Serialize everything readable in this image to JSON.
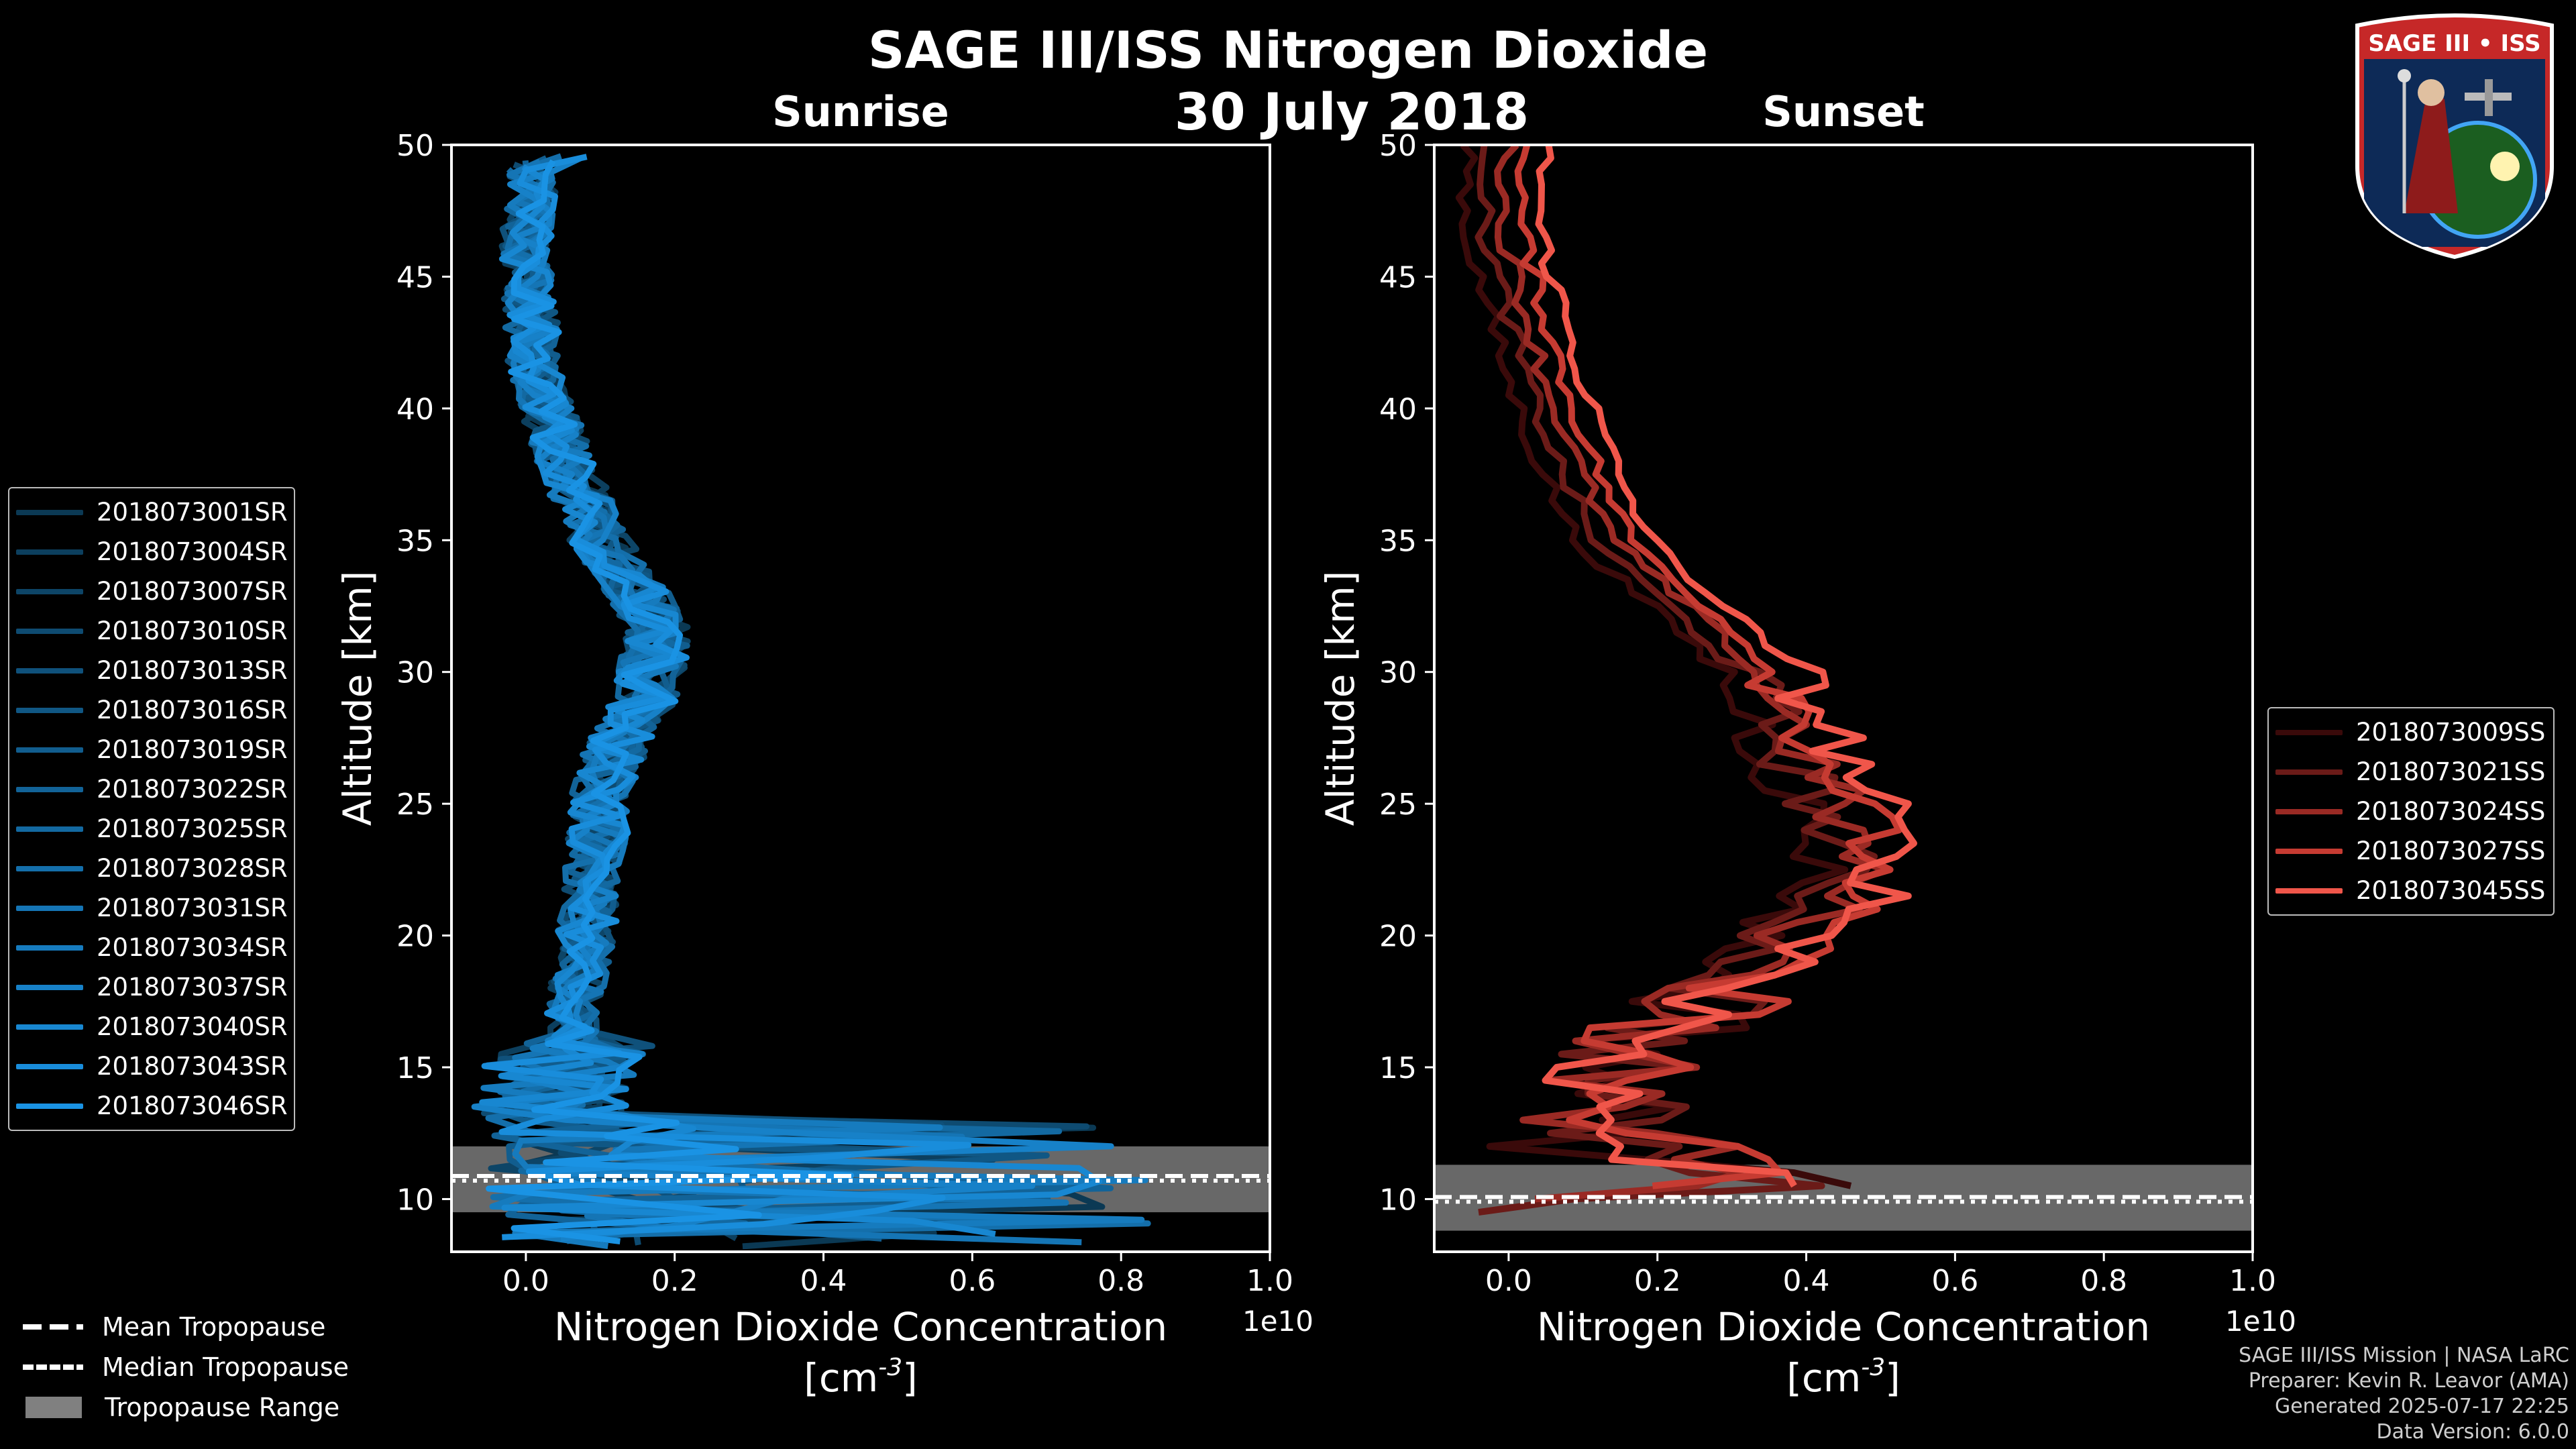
{
  "header": {
    "title": "SAGE III/ISS Nitrogen Dioxide",
    "date": "30 July 2018",
    "left_subtitle": "Sunrise",
    "right_subtitle": "Sunset"
  },
  "logo": {
    "text": "SAGE III • ISS"
  },
  "legend_sunrise": [
    {
      "label": "2018073001SR",
      "color": "#0b3954"
    },
    {
      "label": "2018073004SR",
      "color": "#0c3f5e"
    },
    {
      "label": "2018073007SR",
      "color": "#0d4567"
    },
    {
      "label": "2018073010SR",
      "color": "#0e4b71"
    },
    {
      "label": "2018073013SR",
      "color": "#0f517b"
    },
    {
      "label": "2018073016SR",
      "color": "#105784"
    },
    {
      "label": "2018073019SR",
      "color": "#115d8e"
    },
    {
      "label": "2018073022SR",
      "color": "#126398"
    },
    {
      "label": "2018073025SR",
      "color": "#1369a1"
    },
    {
      "label": "2018073028SR",
      "color": "#146fab"
    },
    {
      "label": "2018073031SR",
      "color": "#1575b5"
    },
    {
      "label": "2018073034SR",
      "color": "#167bbe"
    },
    {
      "label": "2018073037SR",
      "color": "#1781c8"
    },
    {
      "label": "2018073040SR",
      "color": "#1887d1"
    },
    {
      "label": "2018073043SR",
      "color": "#198ddb"
    },
    {
      "label": "2018073046SR",
      "color": "#1a93e4"
    }
  ],
  "legend_sunset": [
    {
      "label": "2018073009SS",
      "color": "#3a0a0a"
    },
    {
      "label": "2018073021SS",
      "color": "#6b1b18"
    },
    {
      "label": "2018073024SS",
      "color": "#9a2a24"
    },
    {
      "label": "2018073027SS",
      "color": "#c63b32"
    },
    {
      "label": "2018073045SS",
      "color": "#f0564a"
    }
  ],
  "bottom_legend": {
    "mean": "Mean Tropopause",
    "median": "Median Tropopause",
    "range": "Tropopause Range"
  },
  "credits": {
    "line1": "SAGE III/ISS Mission | NASA LaRC",
    "line2": "Preparer: Kevin R. Leavor (AMA)",
    "line3": "Generated 2025-07-17 22:25",
    "line4": "Data Version: 6.0.0"
  },
  "chart_data": [
    {
      "type": "line",
      "panel": "Sunrise",
      "xlabel": "Nitrogen Dioxide Concentration",
      "xunit": "[cm",
      "xunit_exp": "-3",
      "xunit_close": "]",
      "ylabel": "Altitude [km]",
      "xlim": [
        -0.1,
        1.0
      ],
      "ylim": [
        8,
        50
      ],
      "x_multiplier": "1e10",
      "xticks": [
        "0.0",
        "0.2",
        "0.4",
        "0.6",
        "0.8",
        "1.0"
      ],
      "xtick_values": [
        0.0,
        0.2,
        0.4,
        0.6,
        0.8,
        1.0
      ],
      "yticks": [
        "10",
        "15",
        "20",
        "25",
        "30",
        "35",
        "40",
        "45",
        "50"
      ],
      "ytick_values": [
        10,
        15,
        20,
        25,
        30,
        35,
        40,
        45,
        50
      ],
      "tropopause": {
        "mean": 10.8,
        "median": 10.8,
        "min": 9.5,
        "max": 12.0
      },
      "mean_profile": [
        [
          0.01,
          49.5
        ],
        [
          0.0,
          46
        ],
        [
          0.01,
          42
        ],
        [
          0.03,
          40
        ],
        [
          0.06,
          37.5
        ],
        [
          0.1,
          35
        ],
        [
          0.15,
          33
        ],
        [
          0.18,
          31.5
        ],
        [
          0.16,
          29
        ],
        [
          0.12,
          27
        ],
        [
          0.1,
          25
        ],
        [
          0.09,
          22
        ],
        [
          0.08,
          20
        ],
        [
          0.07,
          18
        ],
        [
          0.06,
          16
        ],
        [
          0.05,
          14
        ],
        [
          0.05,
          12
        ],
        [
          0.05,
          10
        ],
        [
          0.05,
          9
        ]
      ],
      "series": [
        {
          "name": "2018073001SR"
        },
        {
          "name": "2018073004SR"
        },
        {
          "name": "2018073007SR"
        },
        {
          "name": "2018073010SR"
        },
        {
          "name": "2018073013SR"
        },
        {
          "name": "2018073016SR"
        },
        {
          "name": "2018073019SR"
        },
        {
          "name": "2018073022SR"
        },
        {
          "name": "2018073025SR"
        },
        {
          "name": "2018073028SR"
        },
        {
          "name": "2018073031SR"
        },
        {
          "name": "2018073034SR"
        },
        {
          "name": "2018073037SR"
        },
        {
          "name": "2018073040SR"
        },
        {
          "name": "2018073043SR"
        },
        {
          "name": "2018073046SR"
        }
      ]
    },
    {
      "type": "line",
      "panel": "Sunset",
      "xlabel": "Nitrogen Dioxide Concentration",
      "xunit": "[cm",
      "xunit_exp": "-3",
      "xunit_close": "]",
      "ylabel": "Altitude [km]",
      "xlim": [
        -0.1,
        1.0
      ],
      "ylim": [
        8,
        50
      ],
      "x_multiplier": "1e10",
      "xticks": [
        "0.0",
        "0.2",
        "0.4",
        "0.6",
        "0.8",
        "1.0"
      ],
      "xtick_values": [
        0.0,
        0.2,
        0.4,
        0.6,
        0.8,
        1.0
      ],
      "yticks": [
        "10",
        "15",
        "20",
        "25",
        "30",
        "35",
        "40",
        "45",
        "50"
      ],
      "ytick_values": [
        10,
        15,
        20,
        25,
        30,
        35,
        40,
        45,
        50
      ],
      "tropopause": {
        "mean": 10.0,
        "median": 10.0,
        "min": 8.8,
        "max": 11.3
      },
      "mean_profile": [
        [
          0.0,
          50
        ],
        [
          -0.01,
          47
        ],
        [
          0.02,
          44
        ],
        [
          0.05,
          41
        ],
        [
          0.09,
          38
        ],
        [
          0.14,
          35
        ],
        [
          0.22,
          33
        ],
        [
          0.3,
          31
        ],
        [
          0.36,
          29
        ],
        [
          0.4,
          27
        ],
        [
          0.44,
          25
        ],
        [
          0.47,
          23
        ],
        [
          0.45,
          21.5
        ],
        [
          0.38,
          20
        ],
        [
          0.3,
          18
        ],
        [
          0.2,
          16
        ],
        [
          0.12,
          14
        ],
        [
          0.15,
          12
        ],
        [
          0.3,
          10.5
        ],
        [
          0.1,
          9.5
        ]
      ],
      "series": [
        {
          "name": "2018073009SS"
        },
        {
          "name": "2018073021SS"
        },
        {
          "name": "2018073024SS"
        },
        {
          "name": "2018073027SS"
        },
        {
          "name": "2018073045SS"
        }
      ]
    }
  ]
}
